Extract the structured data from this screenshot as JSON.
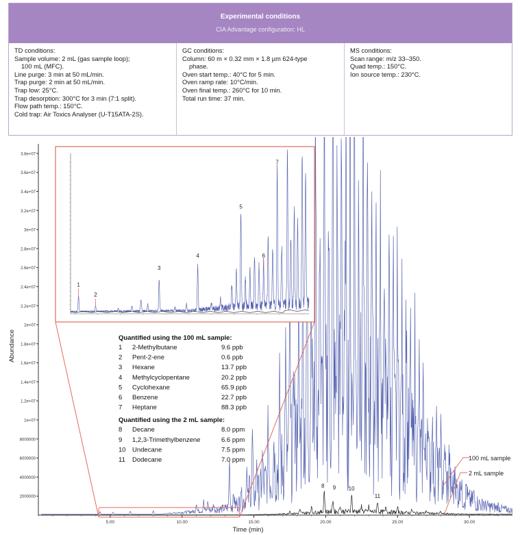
{
  "conditions": {
    "title": "Experimental conditions",
    "subtitle": "CIA Advantage configuration: HL",
    "td": {
      "heading": "TD conditions:",
      "lines": [
        "Sample volume: 2 mL (gas sample loop);",
        "100 mL (MFC).",
        "Line purge: 3 min at 50 mL/min.",
        "Trap purge: 2 min at 50 mL/min.",
        "Trap low: 25°C.",
        "Trap desorption: 300°C for 3 min (7:1 split).",
        "Flow path temp.: 150°C.",
        "Cold trap: Air Toxics Analyser (U-T15ATA-2S)."
      ]
    },
    "gc": {
      "heading": "GC conditions:",
      "lines": [
        "Column: 60 m × 0.32 mm × 1.8 µm 624-type",
        "phase.",
        "Oven start temp.: 40°C for 5 min.",
        "Oven ramp rate: 10°C/min.",
        "Oven final temp.: 260°C for 10 min.",
        "Total run time: 37 min."
      ]
    },
    "ms": {
      "heading": "MS conditions:",
      "lines": [
        "Scan range: m/z 33–350.",
        "Quad temp.: 150°C.",
        "Ion source temp.: 230°C."
      ]
    }
  },
  "colors": {
    "blue_trace": "#5663b0",
    "black_trace": "#222222",
    "zoom_box": "#e36b5b",
    "header_bg": "#a585c2"
  },
  "chart_data": {
    "type": "line",
    "xlabel": "Time (min)",
    "ylabel": "Abundance",
    "x_ticks": [
      "5.00",
      "10.00",
      "15.00",
      "20.00",
      "25.00",
      "30.00"
    ],
    "x_tick_values": [
      5,
      10,
      15,
      20,
      25,
      30
    ],
    "y_ticks": [
      "2000000",
      "4000000",
      "6000000",
      "8000000",
      "1e+07",
      "1.2e+07",
      "1.4e+07",
      "1.6e+07",
      "1.8e+07",
      "2e+07",
      "2.2e+07",
      "2.4e+07",
      "2.6e+07",
      "2.8e+07",
      "3e+07",
      "3.2e+07",
      "3.4e+07",
      "3.6e+07",
      "3.8e+07"
    ],
    "xlim": [
      0,
      33
    ],
    "ylim": [
      0,
      39000000
    ],
    "series": [
      {
        "name": "100 mL sample",
        "peaks": [
          {
            "x": 4.3,
            "y": 250000
          },
          {
            "x": 5.2,
            "y": 200000
          },
          {
            "x": 6.4,
            "y": 300000
          },
          {
            "x": 8.0,
            "y": 350000
          },
          {
            "x": 11.0,
            "y": 900000
          },
          {
            "x": 11.5,
            "y": 1000000
          },
          {
            "x": 11.8,
            "y": 900000
          },
          {
            "x": 12.2,
            "y": 600000
          },
          {
            "x": 13.3,
            "y": 5000000
          },
          {
            "x": 13.6,
            "y": 1200000
          },
          {
            "x": 14.1,
            "y": 1800000
          },
          {
            "x": 14.5,
            "y": 3500000
          },
          {
            "x": 14.7,
            "y": 2200000
          },
          {
            "x": 14.9,
            "y": 7000000
          },
          {
            "x": 15.2,
            "y": 4000000
          },
          {
            "x": 15.6,
            "y": 3000000
          },
          {
            "x": 16.0,
            "y": 6000000
          },
          {
            "x": 16.4,
            "y": 4500000
          },
          {
            "x": 16.8,
            "y": 9000000
          },
          {
            "x": 17.2,
            "y": 12000000
          },
          {
            "x": 17.5,
            "y": 18200000
          },
          {
            "x": 17.8,
            "y": 10000000
          },
          {
            "x": 18.1,
            "y": 14000000
          },
          {
            "x": 18.4,
            "y": 26000000
          },
          {
            "x": 18.7,
            "y": 16000000
          },
          {
            "x": 19.0,
            "y": 20000000
          },
          {
            "x": 19.3,
            "y": 32000000
          },
          {
            "x": 19.6,
            "y": 25000000
          },
          {
            "x": 19.9,
            "y": 33500000
          },
          {
            "x": 20.2,
            "y": 20000000
          },
          {
            "x": 20.5,
            "y": 34500000
          },
          {
            "x": 20.8,
            "y": 24000000
          },
          {
            "x": 21.1,
            "y": 30000000
          },
          {
            "x": 21.4,
            "y": 26000000
          },
          {
            "x": 21.7,
            "y": 29000000
          },
          {
            "x": 22.0,
            "y": 36000000
          },
          {
            "x": 22.3,
            "y": 25000000
          },
          {
            "x": 22.6,
            "y": 28000000
          },
          {
            "x": 22.9,
            "y": 22000000
          },
          {
            "x": 23.2,
            "y": 27000000
          },
          {
            "x": 23.5,
            "y": 20000000
          },
          {
            "x": 23.8,
            "y": 25000000
          },
          {
            "x": 24.1,
            "y": 18000000
          },
          {
            "x": 24.4,
            "y": 22000000
          },
          {
            "x": 24.7,
            "y": 16000000
          },
          {
            "x": 25.0,
            "y": 17500000
          },
          {
            "x": 25.3,
            "y": 13000000
          },
          {
            "x": 25.6,
            "y": 15000000
          },
          {
            "x": 25.9,
            "y": 11000000
          },
          {
            "x": 26.2,
            "y": 12500000
          },
          {
            "x": 26.5,
            "y": 9000000
          },
          {
            "x": 26.8,
            "y": 10000000
          },
          {
            "x": 27.1,
            "y": 7000000
          },
          {
            "x": 27.4,
            "y": 7500000
          },
          {
            "x": 27.7,
            "y": 5500000
          },
          {
            "x": 28.0,
            "y": 5000000
          },
          {
            "x": 28.3,
            "y": 4000000
          },
          {
            "x": 28.6,
            "y": 3500000
          },
          {
            "x": 29.0,
            "y": 2600000
          },
          {
            "x": 29.4,
            "y": 2000000
          },
          {
            "x": 29.8,
            "y": 1500000
          },
          {
            "x": 30.3,
            "y": 1000000
          },
          {
            "x": 31.0,
            "y": 600000
          },
          {
            "x": 32.0,
            "y": 300000
          }
        ],
        "envelope": [
          {
            "x": 10.5,
            "y": 150000
          },
          {
            "x": 13.0,
            "y": 400000
          },
          {
            "x": 15.0,
            "y": 1200000
          },
          {
            "x": 16.0,
            "y": 2500000
          },
          {
            "x": 17.0,
            "y": 3500000
          },
          {
            "x": 18.0,
            "y": 5000000
          },
          {
            "x": 19.0,
            "y": 6500000
          },
          {
            "x": 20.0,
            "y": 8000000
          },
          {
            "x": 21.0,
            "y": 8500000
          },
          {
            "x": 22.0,
            "y": 8500000
          },
          {
            "x": 23.0,
            "y": 8000000
          },
          {
            "x": 24.0,
            "y": 7000000
          },
          {
            "x": 25.0,
            "y": 6000000
          },
          {
            "x": 26.0,
            "y": 4800000
          },
          {
            "x": 27.0,
            "y": 3500000
          },
          {
            "x": 28.0,
            "y": 2500000
          },
          {
            "x": 29.0,
            "y": 1700000
          },
          {
            "x": 30.0,
            "y": 1000000
          },
          {
            "x": 31.0,
            "y": 600000
          },
          {
            "x": 33.0,
            "y": 250000
          }
        ]
      },
      {
        "name": "2 mL sample",
        "peaks": [
          {
            "x": 17.5,
            "y": 300000
          },
          {
            "x": 18.2,
            "y": 400000
          },
          {
            "x": 19.0,
            "y": 600000
          },
          {
            "x": 19.9,
            "y": 2300000
          },
          {
            "x": 20.5,
            "y": 1300000
          },
          {
            "x": 21.0,
            "y": 700000
          },
          {
            "x": 21.8,
            "y": 1900000
          },
          {
            "x": 22.5,
            "y": 600000
          },
          {
            "x": 23.0,
            "y": 500000
          },
          {
            "x": 23.6,
            "y": 1100000
          },
          {
            "x": 24.2,
            "y": 500000
          },
          {
            "x": 25.0,
            "y": 450000
          },
          {
            "x": 26.0,
            "y": 350000
          },
          {
            "x": 27.0,
            "y": 300000
          },
          {
            "x": 28.0,
            "y": 200000
          }
        ],
        "envelope": [
          {
            "x": 16.5,
            "y": 60000
          },
          {
            "x": 18.0,
            "y": 150000
          },
          {
            "x": 20.0,
            "y": 300000
          },
          {
            "x": 22.0,
            "y": 350000
          },
          {
            "x": 24.0,
            "y": 300000
          },
          {
            "x": 26.0,
            "y": 200000
          },
          {
            "x": 28.0,
            "y": 120000
          },
          {
            "x": 30.0,
            "y": 60000
          }
        ]
      }
    ],
    "zoom_region": {
      "x0": 4.2,
      "x1": 14.0,
      "y0": 0,
      "y1": 800000
    },
    "inset": {
      "xlim": [
        3.8,
        14.3
      ],
      "ymax": 3600000,
      "peaks": [
        {
          "x": 4.15,
          "y": 350000,
          "label": "1",
          "tick": true
        },
        {
          "x": 4.9,
          "y": 120000,
          "label": "2",
          "tick": true
        },
        {
          "x": 7.7,
          "y": 720000,
          "label": "3",
          "tick": false
        },
        {
          "x": 9.4,
          "y": 1000000,
          "label": "4",
          "tick": false
        },
        {
          "x": 11.3,
          "y": 2100000,
          "label": "5",
          "tick": false
        },
        {
          "x": 12.3,
          "y": 1000000,
          "label": "6",
          "tick": true
        },
        {
          "x": 12.9,
          "y": 3100000,
          "label": "7",
          "tick": false
        }
      ],
      "extra_peaks": [
        {
          "x": 5.9,
          "y": 60000
        },
        {
          "x": 6.5,
          "y": 120000
        },
        {
          "x": 6.9,
          "y": 250000
        },
        {
          "x": 7.2,
          "y": 150000
        },
        {
          "x": 8.4,
          "y": 80000
        },
        {
          "x": 8.9,
          "y": 150000
        },
        {
          "x": 10.0,
          "y": 110000
        },
        {
          "x": 10.4,
          "y": 200000
        },
        {
          "x": 10.9,
          "y": 500000
        },
        {
          "x": 11.1,
          "y": 900000
        },
        {
          "x": 11.5,
          "y": 600000
        },
        {
          "x": 11.7,
          "y": 800000
        },
        {
          "x": 11.9,
          "y": 1100000
        },
        {
          "x": 12.1,
          "y": 900000
        },
        {
          "x": 12.5,
          "y": 1500000
        },
        {
          "x": 12.7,
          "y": 1300000
        },
        {
          "x": 13.1,
          "y": 1300000
        },
        {
          "x": 13.35,
          "y": 3450000
        },
        {
          "x": 13.5,
          "y": 1500000
        },
        {
          "x": 13.65,
          "y": 2200000
        },
        {
          "x": 13.8,
          "y": 1800000
        },
        {
          "x": 14.0,
          "y": 3450000
        },
        {
          "x": 14.15,
          "y": 3000000
        }
      ]
    },
    "peak_labels": [
      {
        "label": "8",
        "x": 19.8,
        "y": 2600000
      },
      {
        "label": "9",
        "x": 20.6,
        "y": 2400000
      },
      {
        "label": "10",
        "x": 21.8,
        "y": 2300000
      },
      {
        "label": "11",
        "x": 23.6,
        "y": 1500000
      }
    ],
    "series_labels": [
      "100 mL sample",
      "2 mL sample"
    ],
    "legend": {
      "group1_title": "Quantified using the 100 mL sample:",
      "group1": [
        {
          "num": "1",
          "name": "2-Methylbutane",
          "value": "9.6 ppb"
        },
        {
          "num": "2",
          "name": "Pent-2-ene",
          "value": "0.6 ppb"
        },
        {
          "num": "3",
          "name": "Hexane",
          "value": "13.7 ppb"
        },
        {
          "num": "4",
          "name": "Methylcyclopentane",
          "value": "20.2 ppb"
        },
        {
          "num": "5",
          "name": "Cyclohexane",
          "value": "65.9 ppb"
        },
        {
          "num": "6",
          "name": "Benzene",
          "value": "22.7 ppb"
        },
        {
          "num": "7",
          "name": "Heptane",
          "value": "88.3 ppb"
        }
      ],
      "group2_title": "Quantified using the 2 mL sample:",
      "group2": [
        {
          "num": "8",
          "name": "Decane",
          "value": "8.0 ppm"
        },
        {
          "num": "9",
          "name": "1,2,3-Trimethylbenzene",
          "value": "6.6 ppm"
        },
        {
          "num": "10",
          "name": "Undecane",
          "value": "7.5 ppm"
        },
        {
          "num": "11",
          "name": "Dodecane",
          "value": "7.0 ppm"
        }
      ]
    }
  }
}
